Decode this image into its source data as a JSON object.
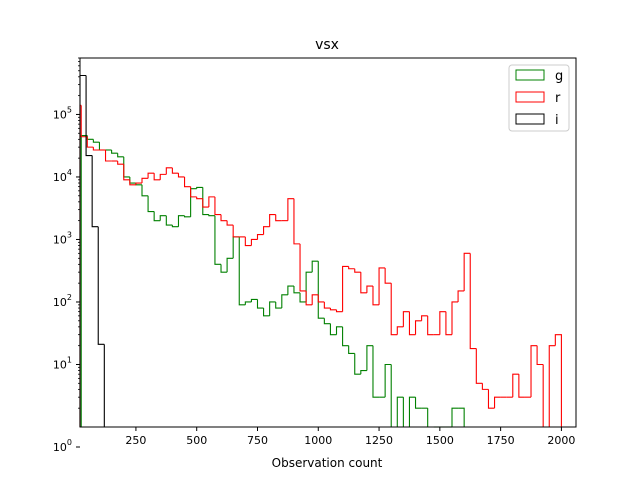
{
  "chart_data": {
    "type": "histogram",
    "title": "vsx",
    "xlabel": "Observation count",
    "ylabel": "",
    "yscale": "log",
    "xlim": [
      20,
      2060
    ],
    "ylim": [
      1,
      800000
    ],
    "x_ticks": [
      250,
      500,
      750,
      1000,
      1250,
      1500,
      1750,
      2000
    ],
    "y_ticks": [
      1,
      10,
      100,
      1000,
      10000,
      100000
    ],
    "grid": false,
    "legend": {
      "location": "upper right",
      "entries": [
        "g",
        "r",
        "i"
      ]
    },
    "series": [
      {
        "name": "g",
        "color": "#008000",
        "bins": [
          [
            25,
            50,
            46000
          ],
          [
            50,
            75,
            40000
          ],
          [
            75,
            100,
            36000
          ],
          [
            100,
            125,
            27000
          ],
          [
            125,
            150,
            27000
          ],
          [
            150,
            175,
            24000
          ],
          [
            175,
            200,
            21000
          ],
          [
            200,
            225,
            10000
          ],
          [
            225,
            250,
            8000
          ],
          [
            250,
            275,
            7500
          ],
          [
            275,
            300,
            5000
          ],
          [
            300,
            325,
            2800
          ],
          [
            325,
            350,
            2000
          ],
          [
            350,
            375,
            2400
          ],
          [
            375,
            400,
            1700
          ],
          [
            400,
            425,
            1600
          ],
          [
            425,
            450,
            2400
          ],
          [
            450,
            475,
            2300
          ],
          [
            475,
            500,
            6500
          ],
          [
            500,
            525,
            6800
          ],
          [
            525,
            550,
            2500
          ],
          [
            550,
            575,
            2400
          ],
          [
            575,
            600,
            400
          ],
          [
            600,
            625,
            300
          ],
          [
            625,
            650,
            500
          ],
          [
            650,
            675,
            1100
          ],
          [
            675,
            700,
            90
          ],
          [
            700,
            725,
            100
          ],
          [
            725,
            750,
            110
          ],
          [
            750,
            775,
            80
          ],
          [
            775,
            800,
            60
          ],
          [
            800,
            825,
            100
          ],
          [
            825,
            850,
            80
          ],
          [
            850,
            875,
            130
          ],
          [
            875,
            900,
            180
          ],
          [
            900,
            925,
            140
          ],
          [
            925,
            950,
            100
          ],
          [
            950,
            975,
            300
          ],
          [
            975,
            1000,
            450
          ],
          [
            1000,
            1025,
            55
          ],
          [
            1025,
            1050,
            45
          ],
          [
            1050,
            1075,
            30
          ],
          [
            1075,
            1100,
            40
          ],
          [
            1100,
            1125,
            20
          ],
          [
            1125,
            1150,
            15
          ],
          [
            1150,
            1175,
            7
          ],
          [
            1175,
            1200,
            8
          ],
          [
            1200,
            1225,
            20
          ],
          [
            1225,
            1250,
            3
          ],
          [
            1250,
            1275,
            3
          ],
          [
            1275,
            1300,
            10
          ],
          [
            1300,
            1325,
            1
          ],
          [
            1325,
            1350,
            3
          ],
          [
            1350,
            1375,
            1
          ],
          [
            1375,
            1400,
            3
          ],
          [
            1400,
            1425,
            2
          ],
          [
            1425,
            1450,
            2
          ],
          [
            1450,
            1475,
            1
          ],
          [
            1475,
            1500,
            0.5
          ],
          [
            1500,
            1525,
            0.5
          ],
          [
            1525,
            1550,
            0.5
          ],
          [
            1550,
            1575,
            2
          ],
          [
            1575,
            1600,
            2
          ]
        ]
      },
      {
        "name": "r",
        "color": "#ff0000",
        "bins": [
          [
            20,
            25,
            140000
          ],
          [
            25,
            50,
            44000
          ],
          [
            50,
            75,
            30000
          ],
          [
            75,
            100,
            27000
          ],
          [
            100,
            125,
            27000
          ],
          [
            125,
            150,
            18000
          ],
          [
            150,
            175,
            18000
          ],
          [
            175,
            200,
            16000
          ],
          [
            200,
            225,
            9000
          ],
          [
            225,
            250,
            7500
          ],
          [
            250,
            275,
            8000
          ],
          [
            275,
            300,
            9500
          ],
          [
            300,
            325,
            11500
          ],
          [
            325,
            350,
            9000
          ],
          [
            350,
            375,
            11000
          ],
          [
            375,
            400,
            14000
          ],
          [
            400,
            425,
            11500
          ],
          [
            425,
            450,
            10000
          ],
          [
            450,
            475,
            7000
          ],
          [
            475,
            500,
            4800
          ],
          [
            500,
            525,
            4500
          ],
          [
            525,
            550,
            3300
          ],
          [
            550,
            575,
            4800
          ],
          [
            575,
            600,
            2500
          ],
          [
            600,
            625,
            2000
          ],
          [
            625,
            650,
            1700
          ],
          [
            650,
            675,
            1100
          ],
          [
            675,
            700,
            1100
          ],
          [
            700,
            725,
            800
          ],
          [
            725,
            750,
            1000
          ],
          [
            750,
            775,
            1200
          ],
          [
            775,
            800,
            1600
          ],
          [
            800,
            825,
            2500
          ],
          [
            825,
            850,
            2000
          ],
          [
            850,
            875,
            2000
          ],
          [
            875,
            900,
            4500
          ],
          [
            900,
            925,
            850
          ],
          [
            925,
            950,
            150
          ],
          [
            950,
            975,
            90
          ],
          [
            975,
            1000,
            130
          ],
          [
            1000,
            1025,
            100
          ],
          [
            1025,
            1050,
            80
          ],
          [
            1050,
            1075,
            75
          ],
          [
            1075,
            1100,
            70
          ],
          [
            1100,
            1125,
            370
          ],
          [
            1125,
            1150,
            340
          ],
          [
            1150,
            1175,
            300
          ],
          [
            1175,
            1200,
            140
          ],
          [
            1200,
            1225,
            180
          ],
          [
            1225,
            1250,
            90
          ],
          [
            1250,
            1275,
            350
          ],
          [
            1275,
            1300,
            200
          ],
          [
            1300,
            1325,
            30
          ],
          [
            1325,
            1350,
            40
          ],
          [
            1350,
            1375,
            70
          ],
          [
            1375,
            1400,
            30
          ],
          [
            1400,
            1425,
            50
          ],
          [
            1425,
            1450,
            60
          ],
          [
            1450,
            1475,
            30
          ],
          [
            1475,
            1500,
            30
          ],
          [
            1500,
            1525,
            70
          ],
          [
            1525,
            1550,
            30
          ],
          [
            1550,
            1575,
            100
          ],
          [
            1575,
            1600,
            150
          ],
          [
            1600,
            1625,
            600
          ],
          [
            1625,
            1650,
            18
          ],
          [
            1650,
            1675,
            5
          ],
          [
            1675,
            1700,
            4
          ],
          [
            1700,
            1725,
            2
          ],
          [
            1725,
            1750,
            3
          ],
          [
            1750,
            1775,
            3
          ],
          [
            1775,
            1800,
            3
          ],
          [
            1800,
            1825,
            7
          ],
          [
            1825,
            1850,
            3
          ],
          [
            1850,
            1875,
            3
          ],
          [
            1875,
            1900,
            20
          ],
          [
            1900,
            1925,
            10
          ],
          [
            1925,
            1950,
            1
          ],
          [
            1950,
            1975,
            20
          ],
          [
            1975,
            2000,
            30
          ]
        ]
      },
      {
        "name": "i",
        "color": "#000000",
        "bins": [
          [
            20,
            45,
            420000
          ],
          [
            45,
            70,
            22000
          ],
          [
            70,
            95,
            1600
          ],
          [
            95,
            120,
            21
          ],
          [
            120,
            145,
            0.5
          ]
        ]
      }
    ]
  }
}
